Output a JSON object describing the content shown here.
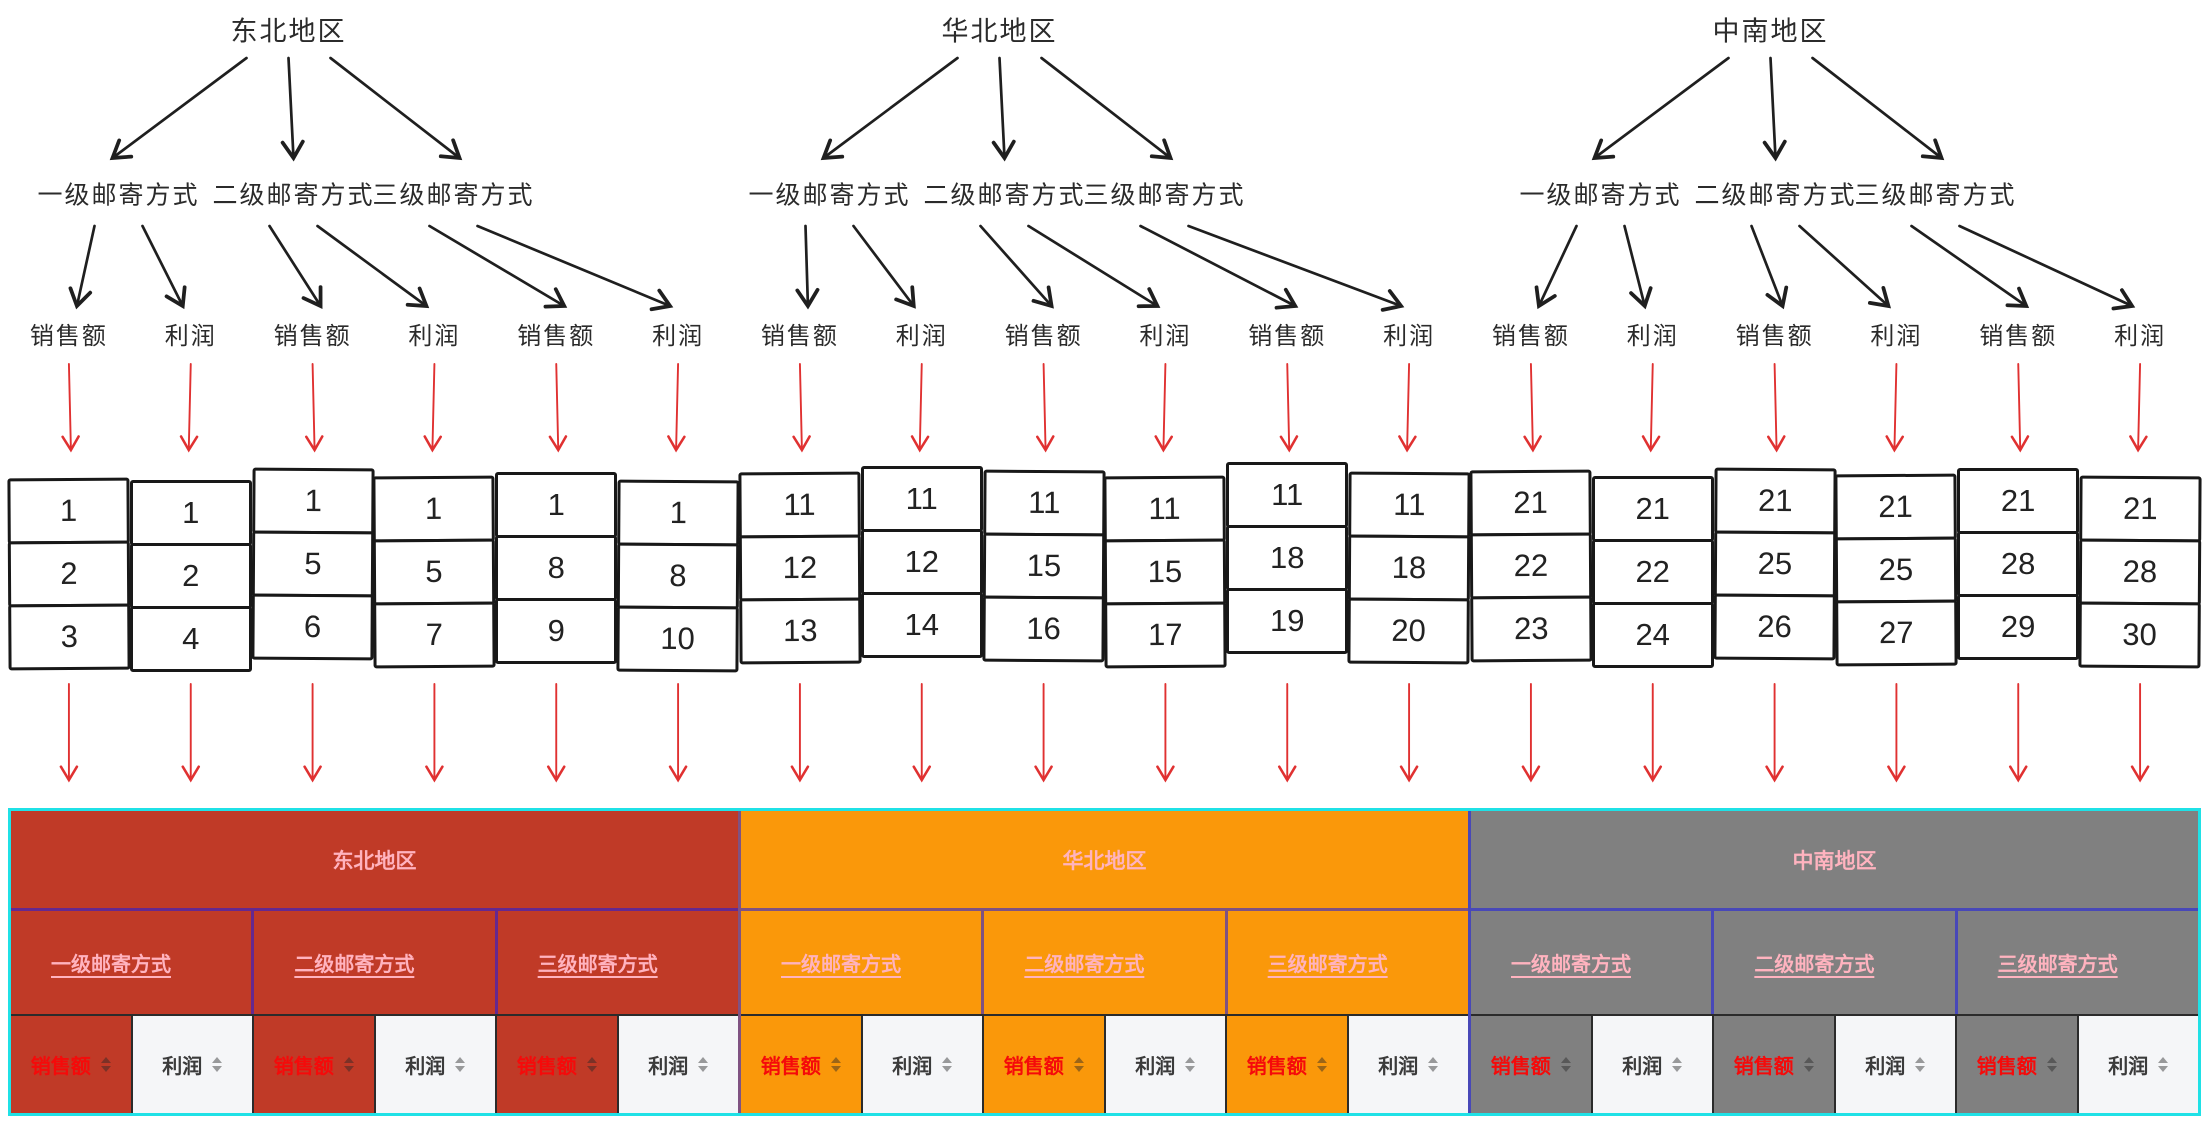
{
  "sketch": {
    "regions": [
      {
        "label": "东北地区",
        "methods": [
          {
            "label": "一级邮寄方式",
            "metrics": [
              "销售额",
              "利润"
            ]
          },
          {
            "label": "二级邮寄方式",
            "metrics": [
              "销售额",
              "利润"
            ]
          },
          {
            "label": "三级邮寄方式",
            "metrics": [
              "销售额",
              "利润"
            ]
          }
        ]
      },
      {
        "label": "华北地区",
        "methods": [
          {
            "label": "一级邮寄方式",
            "metrics": [
              "销售额",
              "利润"
            ]
          },
          {
            "label": "二级邮寄方式",
            "metrics": [
              "销售额",
              "利润"
            ]
          },
          {
            "label": "三级邮寄方式",
            "metrics": [
              "销售额",
              "利润"
            ]
          }
        ]
      },
      {
        "label": "中南地区",
        "methods": [
          {
            "label": "一级邮寄方式",
            "metrics": [
              "销售额",
              "利润"
            ]
          },
          {
            "label": "二级邮寄方式",
            "metrics": [
              "销售额",
              "利润"
            ]
          },
          {
            "label": "三级邮寄方式",
            "metrics": [
              "销售额",
              "利润"
            ]
          }
        ]
      }
    ],
    "arrow_colors": {
      "tree": "#1f1f1f",
      "flow": "#e03131"
    }
  },
  "grid": {
    "columns": [
      [
        1,
        2,
        3
      ],
      [
        1,
        2,
        4
      ],
      [
        1,
        5,
        6
      ],
      [
        1,
        5,
        7
      ],
      [
        1,
        8,
        9
      ],
      [
        1,
        8,
        10
      ],
      [
        11,
        12,
        13
      ],
      [
        11,
        12,
        14
      ],
      [
        11,
        15,
        16
      ],
      [
        11,
        15,
        17
      ],
      [
        11,
        18,
        19
      ],
      [
        11,
        18,
        20
      ],
      [
        21,
        22,
        23
      ],
      [
        21,
        22,
        24
      ],
      [
        21,
        25,
        26
      ],
      [
        21,
        25,
        27
      ],
      [
        21,
        28,
        29
      ],
      [
        21,
        28,
        30
      ]
    ]
  },
  "table": {
    "colors": {
      "outer_border": "#1fe1e6",
      "divider": "rgba(25,25,230,0.55)",
      "metric_border": "#2b2b2b",
      "header_text": "#ffb3bf",
      "sales_text": "#f50a0a",
      "profit_text": "#3b3b3b",
      "profit_bg": "#f5f6f8"
    },
    "icons": {
      "sort": "sort-arrows-icon"
    },
    "regions": [
      {
        "label": "东北地区",
        "bg": "#c03a27",
        "methods": [
          "一级邮寄方式",
          "二级邮寄方式",
          "三级邮寄方式"
        ],
        "metrics": [
          "销售额",
          "利润",
          "销售额",
          "利润",
          "销售额",
          "利润"
        ]
      },
      {
        "label": "华北地区",
        "bg": "#fa980a",
        "methods": [
          "一级邮寄方式",
          "二级邮寄方式",
          "三级邮寄方式"
        ],
        "metrics": [
          "销售额",
          "利润",
          "销售额",
          "利润",
          "销售额",
          "利润"
        ]
      },
      {
        "label": "中南地区",
        "bg": "#808080",
        "methods": [
          "一级邮寄方式",
          "二级邮寄方式",
          "三级邮寄方式"
        ],
        "metrics": [
          "销售额",
          "利润",
          "销售额",
          "利润",
          "销售额",
          "利润"
        ]
      }
    ]
  }
}
